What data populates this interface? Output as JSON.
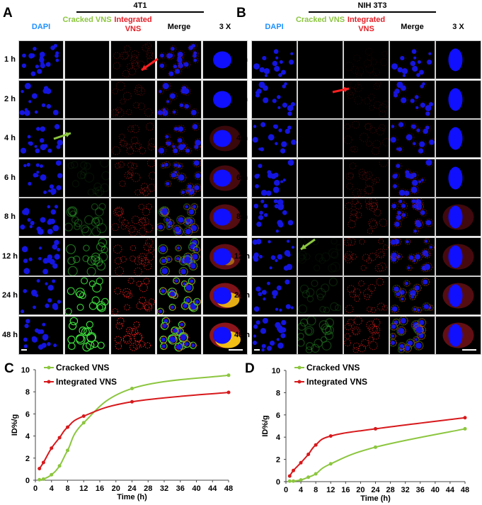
{
  "panels": [
    {
      "label": "A",
      "group_title": "4T1",
      "columns": [
        "DAPI",
        "Cracked VNS",
        "Integrated VNS",
        "Merge",
        "3 X"
      ],
      "green_level": [
        0,
        0,
        0,
        0.08,
        0.3,
        0.5,
        0.9,
        1
      ],
      "red_level": [
        0.3,
        0.3,
        0.4,
        0.5,
        0.6,
        0.7,
        0.9,
        1
      ]
    },
    {
      "label": "B",
      "group_title": "NIH 3T3",
      "columns": [
        "DAPI",
        "Cracked VNS",
        "Integrated VNS",
        "Merge",
        "3 X"
      ],
      "green_level": [
        0,
        0,
        0,
        0,
        0,
        0.05,
        0.15,
        0.3
      ],
      "red_level": [
        0.1,
        0.15,
        0.2,
        0.25,
        0.45,
        0.5,
        0.6,
        0.7
      ]
    }
  ],
  "column_colors": [
    "#1e90ff",
    "#8cc63f",
    "#e41e26",
    "#000000",
    "#000000"
  ],
  "time_rows": [
    "1 h",
    "2 h",
    "4 h",
    "6 h",
    "8 h",
    "12 h",
    "24 h",
    "48 h"
  ],
  "chart_data": [
    {
      "panel_label": "C",
      "type": "line",
      "xlabel": "Time (h)",
      "ylabel": "ID%/g",
      "xlim": [
        0,
        48
      ],
      "ylim": [
        0,
        10
      ],
      "xticks": [
        0,
        4,
        8,
        12,
        16,
        20,
        24,
        28,
        32,
        36,
        40,
        44,
        48
      ],
      "yticks": [
        0,
        2,
        4,
        6,
        8,
        10
      ],
      "legend": "top-left",
      "grid": false,
      "x": [
        1,
        2,
        4,
        6,
        8,
        12,
        24,
        48
      ],
      "series": [
        {
          "name": "Cracked VNS",
          "color": "#8cc63f",
          "values": [
            0.05,
            0.1,
            0.5,
            1.3,
            2.7,
            5.2,
            8.3,
            9.5
          ]
        },
        {
          "name": "Integrated VNS",
          "color": "#d7191c",
          "values": [
            1.05,
            1.6,
            2.9,
            3.85,
            4.8,
            5.8,
            7.1,
            7.95
          ]
        }
      ]
    },
    {
      "panel_label": "D",
      "type": "line",
      "xlabel": "Time (h)",
      "ylabel": "ID%/g",
      "xlim": [
        0,
        48
      ],
      "ylim": [
        0,
        10
      ],
      "xticks": [
        0,
        4,
        8,
        12,
        16,
        20,
        24,
        28,
        32,
        36,
        40,
        44,
        48
      ],
      "yticks": [
        0,
        2,
        4,
        6,
        8,
        10
      ],
      "legend": "top-left",
      "grid": false,
      "x": [
        1,
        2,
        4,
        6,
        8,
        12,
        24,
        48
      ],
      "series": [
        {
          "name": "Cracked VNS",
          "color": "#8cc63f",
          "values": [
            0.05,
            0.05,
            0.15,
            0.4,
            0.7,
            1.6,
            3.1,
            4.75
          ]
        },
        {
          "name": "Integrated VNS",
          "color": "#d7191c",
          "values": [
            0.5,
            1.0,
            1.7,
            2.45,
            3.3,
            4.1,
            4.75,
            5.75
          ]
        }
      ]
    }
  ]
}
